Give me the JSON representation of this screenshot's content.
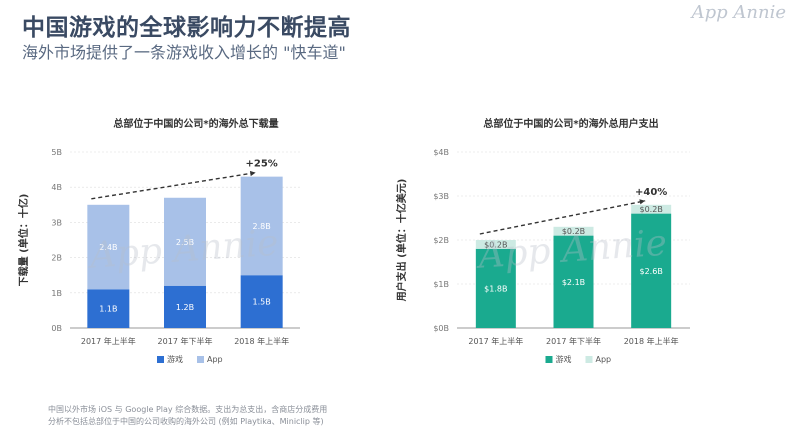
{
  "page": {
    "title": "中国游戏的全球影响力不断提高",
    "subtitle": "海外市场提供了一条游戏收入增长的 \"快车道\"",
    "brand": "App Annie",
    "watermark": "App Annie",
    "footnote_line1": "中国以外市场 iOS 与 Google Play 综合数据。支出为总支出，含商店分成费用",
    "footnote_line2": "分析不包括总部位于中国的公司收购的海外公司 (例如 Playtika、Miniclip 等)"
  },
  "colors": {
    "left_games": "#2d6fd2",
    "left_app": "#a8c1e8",
    "right_games": "#1aaa8f",
    "right_app": "#cdeae3",
    "axis": "#999999",
    "grid": "#dddddd"
  },
  "chart_data": [
    {
      "type": "bar",
      "stacked": true,
      "title": "总部位于中国的公司*的海外总下载量",
      "ylabel": "下载量 (单位：十亿)",
      "xlabel": "",
      "categories": [
        "2017 年上半年",
        "2017 年下半年",
        "2018 年上半年"
      ],
      "series": [
        {
          "name": "游戏",
          "values": [
            1.1,
            1.2,
            1.5
          ],
          "labels": [
            "1.1B",
            "1.2B",
            "1.5B"
          ]
        },
        {
          "name": "App",
          "values": [
            2.4,
            2.5,
            2.8
          ],
          "labels": [
            "2.4B",
            "2.5B",
            "2.8B"
          ]
        }
      ],
      "ylim": [
        0,
        5
      ],
      "yticks": [
        0,
        1,
        2,
        3,
        4,
        5
      ],
      "ytick_labels": [
        "0B",
        "1B",
        "2B",
        "3B",
        "4B",
        "5B"
      ],
      "growth_label": "+25%",
      "legend_position": "bottom"
    },
    {
      "type": "bar",
      "stacked": true,
      "title": "总部位于中国的公司*的海外总用户支出",
      "ylabel": "用户支出 (单位：十亿美元)",
      "xlabel": "",
      "categories": [
        "2017 年上半年",
        "2017 年下半年",
        "2018 年上半年"
      ],
      "series": [
        {
          "name": "游戏",
          "values": [
            1.8,
            2.1,
            2.6
          ],
          "labels": [
            "$1.8B",
            "$2.1B",
            "$2.6B"
          ]
        },
        {
          "name": "App",
          "values": [
            0.2,
            0.2,
            0.2
          ],
          "labels": [
            "$0.2B",
            "$0.2B",
            "$0.2B"
          ]
        }
      ],
      "ylim": [
        0,
        4
      ],
      "yticks": [
        0,
        1,
        2,
        3,
        4
      ],
      "ytick_labels": [
        "$0B",
        "$1B",
        "$2B",
        "$3B",
        "$4B"
      ],
      "growth_label": "+40%",
      "legend_position": "bottom"
    }
  ]
}
